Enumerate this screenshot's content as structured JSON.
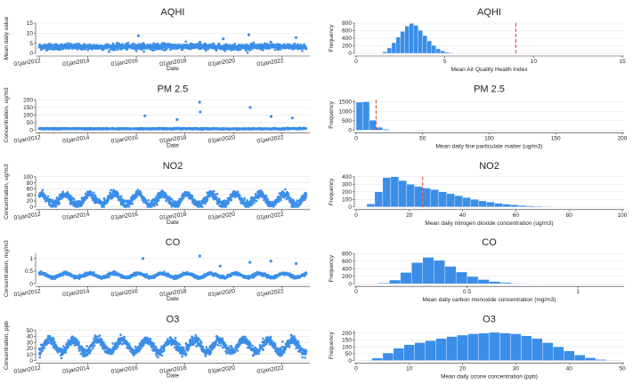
{
  "chart_data": [
    {
      "type": "scatter",
      "panel": "ts",
      "title": "AQHI",
      "xlabel": "Date",
      "ylabel": "Mean daily value",
      "x_ticks": [
        "01jan2012",
        "01jan2014",
        "01jan2016",
        "01jan2018",
        "01jan2020",
        "01jan2022"
      ],
      "y_ticks": [
        0,
        5,
        10,
        15
      ],
      "ylim": [
        0,
        15
      ],
      "grid": true,
      "series": [
        {
          "color": "#3b8ee8",
          "profile": [
            {
              "year": 2012,
              "level": 3.3
            },
            {
              "year": 2014,
              "level": 3.2
            },
            {
              "year": 2016,
              "level": 3.3
            },
            {
              "year": 2018,
              "level": 3.4
            },
            {
              "year": 2020,
              "level": 3.1
            },
            {
              "year": 2022,
              "level": 3.3
            }
          ],
          "spikes": [
            [
              "2016-02-01",
              8.8
            ],
            [
              "2018-08-15",
              5.5
            ],
            [
              "2019-08-01",
              7.2
            ],
            [
              "2020-08-20",
              9.2
            ],
            [
              "2021-07-15",
              5.6
            ],
            [
              "2022-08-01",
              7.8
            ]
          ]
        }
      ]
    },
    {
      "type": "bar",
      "panel": "hist",
      "title": "AQHI",
      "xlabel": "Mean Air Quality Health Index",
      "ylabel": "Frequency",
      "xlim": [
        0,
        15
      ],
      "ylim": [
        0,
        800
      ],
      "x_ticks": [
        0,
        5,
        10,
        15
      ],
      "y_ticks": [
        0,
        200,
        400,
        600,
        800
      ],
      "bins": [
        [
          1.0,
          1.25,
          3
        ],
        [
          1.25,
          1.5,
          10
        ],
        [
          1.5,
          1.75,
          40
        ],
        [
          1.75,
          2.0,
          140
        ],
        [
          2.0,
          2.25,
          280
        ],
        [
          2.25,
          2.5,
          430
        ],
        [
          2.5,
          2.75,
          580
        ],
        [
          2.75,
          3.0,
          720
        ],
        [
          3.0,
          3.25,
          790
        ],
        [
          3.25,
          3.5,
          740
        ],
        [
          3.5,
          3.75,
          610
        ],
        [
          3.75,
          4.0,
          470
        ],
        [
          4.0,
          4.25,
          330
        ],
        [
          4.25,
          4.5,
          210
        ],
        [
          4.5,
          4.75,
          120
        ],
        [
          4.75,
          5.0,
          65
        ],
        [
          5.0,
          5.25,
          30
        ],
        [
          5.25,
          5.5,
          14
        ],
        [
          5.5,
          5.75,
          6
        ],
        [
          5.75,
          6.0,
          3
        ]
      ],
      "reference_line": 9
    },
    {
      "type": "scatter",
      "panel": "ts",
      "title": "PM 2.5",
      "xlabel": "Date",
      "ylabel": "Concentration, ug/m3",
      "x_ticks": [
        "01jan2012",
        "01jan2014",
        "01jan2016",
        "01jan2018",
        "01jan2020",
        "01jan2022"
      ],
      "y_ticks": [
        0,
        50,
        100,
        150,
        200
      ],
      "ylim": [
        0,
        200
      ],
      "grid": true,
      "series": [
        {
          "color": "#3b8ee8",
          "profile": [
            {
              "year": 2012,
              "level": 10
            },
            {
              "year": 2014,
              "level": 9
            },
            {
              "year": 2016,
              "level": 9
            },
            {
              "year": 2018,
              "level": 10
            },
            {
              "year": 2020,
              "level": 8
            },
            {
              "year": 2022,
              "level": 9
            }
          ],
          "spikes": [
            [
              "2016-05-10",
              95
            ],
            [
              "2017-09-05",
              70
            ],
            [
              "2018-08-10",
              185
            ],
            [
              "2018-08-20",
              120
            ],
            [
              "2020-09-10",
              150
            ],
            [
              "2021-07-20",
              90
            ],
            [
              "2022-06-05",
              80
            ]
          ]
        }
      ]
    },
    {
      "type": "bar",
      "panel": "hist",
      "title": "PM 2.5",
      "xlabel": "Mean daily fine particulate matter (ug/m3)",
      "ylabel": "Frequency",
      "xlim": [
        0,
        200
      ],
      "ylim": [
        0,
        1600
      ],
      "x_ticks": [
        0,
        50,
        100,
        150,
        200
      ],
      "y_ticks": [
        0,
        500,
        1000,
        1500
      ],
      "bins": [
        [
          0,
          5,
          1480
        ],
        [
          5,
          10,
          1500
        ],
        [
          10,
          15,
          520
        ],
        [
          15,
          20,
          150
        ],
        [
          20,
          25,
          50
        ],
        [
          25,
          30,
          20
        ],
        [
          30,
          35,
          10
        ],
        [
          35,
          40,
          6
        ],
        [
          40,
          45,
          4
        ]
      ],
      "reference_line": 15
    },
    {
      "type": "scatter",
      "panel": "ts",
      "title": "NO2",
      "xlabel": "Date",
      "ylabel": "Concentration, ug/m3",
      "x_ticks": [
        "01jan2012",
        "01jan2014",
        "01jan2016",
        "01jan2018",
        "01jan2020",
        "01jan2022"
      ],
      "y_ticks": [
        0,
        20,
        40,
        60,
        80,
        100
      ],
      "ylim": [
        0,
        100
      ],
      "grid": true,
      "series": [
        {
          "color": "#3b8ee8",
          "seasonal": {
            "mean": 25,
            "amplitude": 18,
            "peak_month": 1
          }
        }
      ]
    },
    {
      "type": "bar",
      "panel": "hist",
      "title": "NO2",
      "xlabel": "Mean daily nitrogen dioxide concentration (ug/m3)",
      "ylabel": "Frequency",
      "xlim": [
        0,
        100
      ],
      "ylim": [
        0,
        400
      ],
      "x_ticks": [
        0,
        20,
        40,
        60,
        80,
        100
      ],
      "y_ticks": [
        0,
        100,
        200,
        300,
        400
      ],
      "bins": [
        [
          4,
          7,
          40
        ],
        [
          7,
          10,
          200
        ],
        [
          10,
          13,
          390
        ],
        [
          13,
          16,
          400
        ],
        [
          16,
          19,
          350
        ],
        [
          19,
          22,
          300
        ],
        [
          22,
          25,
          270
        ],
        [
          25,
          28,
          250
        ],
        [
          28,
          31,
          230
        ],
        [
          31,
          34,
          200
        ],
        [
          34,
          37,
          175
        ],
        [
          37,
          40,
          150
        ],
        [
          40,
          43,
          125
        ],
        [
          43,
          46,
          100
        ],
        [
          46,
          49,
          80
        ],
        [
          49,
          52,
          65
        ],
        [
          52,
          55,
          50
        ],
        [
          55,
          58,
          38
        ],
        [
          58,
          61,
          28
        ],
        [
          61,
          64,
          20
        ],
        [
          64,
          67,
          14
        ],
        [
          67,
          70,
          10
        ],
        [
          70,
          73,
          6
        ],
        [
          73,
          76,
          4
        ],
        [
          76,
          79,
          3
        ]
      ],
      "reference_line": 25
    },
    {
      "type": "scatter",
      "panel": "ts",
      "title": "CO",
      "xlabel": "Date",
      "ylabel": "Concentration, mg/m3",
      "x_ticks": [
        "01jan2012",
        "01jan2014",
        "01jan2016",
        "01jan2018",
        "01jan2020",
        "01jan2022"
      ],
      "y_ticks": [
        0,
        0.5,
        1
      ],
      "ylim": [
        0,
        1.2
      ],
      "grid": true,
      "series": [
        {
          "color": "#3b8ee8",
          "seasonal": {
            "mean": 0.33,
            "amplitude": 0.08,
            "peak_month": 1
          },
          "spikes": [
            [
              "2016-04-10",
              1.0
            ],
            [
              "2018-08-12",
              1.1
            ],
            [
              "2019-06-15",
              0.7
            ],
            [
              "2020-09-05",
              0.85
            ],
            [
              "2021-07-18",
              0.9
            ],
            [
              "2022-08-01",
              0.8
            ]
          ]
        }
      ]
    },
    {
      "type": "bar",
      "panel": "hist",
      "title": "CO",
      "xlabel": "Mean daily carbon monoxide concentration (mg/m3)",
      "ylabel": "Frequency",
      "xlim": [
        0,
        1.2
      ],
      "ylim": [
        0,
        800
      ],
      "x_ticks": [
        0,
        0.5,
        1
      ],
      "y_ticks": [
        0,
        200,
        400,
        600,
        800
      ],
      "bins": [
        [
          0.1,
          0.15,
          20
        ],
        [
          0.15,
          0.2,
          100
        ],
        [
          0.2,
          0.25,
          300
        ],
        [
          0.25,
          0.3,
          560
        ],
        [
          0.3,
          0.35,
          700
        ],
        [
          0.35,
          0.4,
          620
        ],
        [
          0.4,
          0.45,
          460
        ],
        [
          0.45,
          0.5,
          310
        ],
        [
          0.5,
          0.55,
          190
        ],
        [
          0.55,
          0.6,
          110
        ],
        [
          0.6,
          0.65,
          60
        ],
        [
          0.65,
          0.7,
          30
        ],
        [
          0.7,
          0.75,
          15
        ],
        [
          0.75,
          0.8,
          8
        ],
        [
          0.8,
          0.85,
          4
        ]
      ]
    },
    {
      "type": "scatter",
      "panel": "ts",
      "title": "O3",
      "xlabel": "Date",
      "ylabel": "Concentration, ppb",
      "x_ticks": [
        "01jan2012",
        "01jan2014",
        "01jan2016",
        "01jan2018",
        "01jan2020",
        "01jan2022"
      ],
      "y_ticks": [
        0,
        10,
        20,
        30,
        40,
        50
      ],
      "ylim": [
        0,
        50
      ],
      "grid": true,
      "series": [
        {
          "color": "#3b8ee8",
          "seasonal": {
            "mean": 24,
            "amplitude": 10,
            "peak_month": 5
          }
        }
      ]
    },
    {
      "type": "bar",
      "panel": "hist",
      "title": "O3",
      "xlabel": "Mean daily ozone concentration (ppb)",
      "ylabel": "Frequency",
      "xlim": [
        0,
        50
      ],
      "ylim": [
        0,
        220
      ],
      "x_ticks": [
        0,
        10,
        20,
        30,
        40,
        50
      ],
      "y_ticks": [
        0,
        50,
        100,
        150,
        200
      ],
      "bins": [
        [
          1,
          3,
          3
        ],
        [
          3,
          5,
          18
        ],
        [
          5,
          7,
          55
        ],
        [
          7,
          9,
          90
        ],
        [
          9,
          11,
          115
        ],
        [
          11,
          13,
          130
        ],
        [
          13,
          15,
          145
        ],
        [
          15,
          17,
          160
        ],
        [
          17,
          19,
          175
        ],
        [
          19,
          21,
          185
        ],
        [
          21,
          23,
          195
        ],
        [
          23,
          25,
          200
        ],
        [
          25,
          27,
          205
        ],
        [
          27,
          29,
          200
        ],
        [
          29,
          31,
          195
        ],
        [
          31,
          33,
          180
        ],
        [
          33,
          35,
          160
        ],
        [
          35,
          37,
          130
        ],
        [
          37,
          39,
          100
        ],
        [
          39,
          41,
          70
        ],
        [
          41,
          43,
          40
        ],
        [
          43,
          45,
          20
        ],
        [
          45,
          47,
          8
        ],
        [
          47,
          49,
          3
        ]
      ]
    }
  ]
}
